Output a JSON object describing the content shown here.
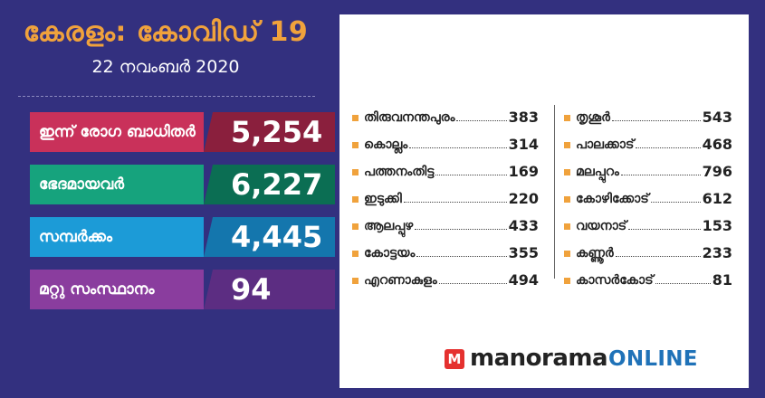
{
  "header": {
    "title": "കേരളം: കോവിഡ് 19",
    "date": "22 നവംബർ 2020"
  },
  "stats": [
    {
      "label": "ഇന്ന് രോഗ ബാധിതർ",
      "value": "5,254"
    },
    {
      "label": "ഭേദമായവർ",
      "value": "6,227"
    },
    {
      "label": "സമ്പർക്കം",
      "value": "4,445"
    },
    {
      "label": "മറ്റു സംസ്ഥാനം",
      "value": "94"
    }
  ],
  "districts_left": [
    {
      "name": "തിരുവനന്തപുരം",
      "count": "383"
    },
    {
      "name": "കൊല്ലം",
      "count": "314"
    },
    {
      "name": "പത്തനംതിട്ട",
      "count": "169"
    },
    {
      "name": "ഇടുക്കി",
      "count": "220"
    },
    {
      "name": "ആലപ്പുഴ",
      "count": "433"
    },
    {
      "name": "കോട്ടയം",
      "count": "355"
    },
    {
      "name": "എറണാകുളം",
      "count": "494"
    }
  ],
  "districts_right": [
    {
      "name": "തൃശൂർ",
      "count": "543"
    },
    {
      "name": "പാലക്കാട്",
      "count": "468"
    },
    {
      "name": "മലപ്പുറം",
      "count": "796"
    },
    {
      "name": "കോഴിക്കോട്",
      "count": "612"
    },
    {
      "name": "വയനാട്",
      "count": "153"
    },
    {
      "name": "കണ്ണൂർ",
      "count": "233"
    },
    {
      "name": "കാസർകോട്",
      "count": "81"
    }
  ],
  "brand": {
    "logo_letter": "M",
    "main": "manorama",
    "sub": "ONLINE"
  },
  "colors": {
    "background": "#33307f",
    "title": "#f0a23c",
    "bullet": "#f0a23c",
    "brand_red": "#e5312f",
    "brand_blue": "#1f72b8"
  }
}
